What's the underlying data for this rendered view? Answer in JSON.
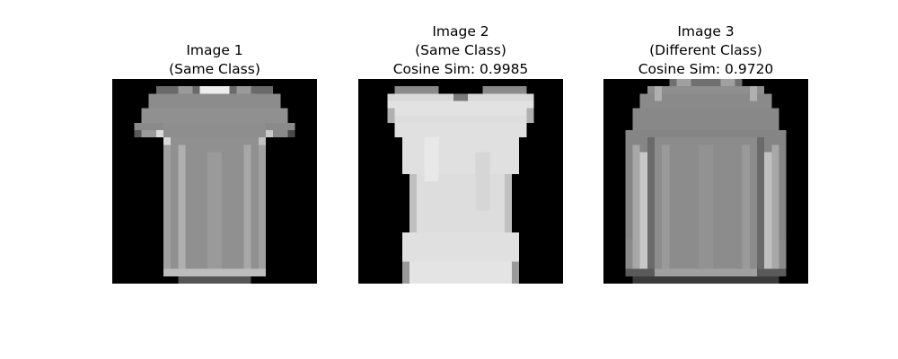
{
  "panels": [
    {
      "title_lines": [
        "Image 1",
        "(Same Class)"
      ],
      "image": "t-shirt"
    },
    {
      "title_lines": [
        "Image 2",
        "(Same Class)",
        "Cosine Sim: 0.9985"
      ],
      "image": "sleeveless-top"
    },
    {
      "title_lines": [
        "Image 3",
        "(Different Class)",
        "Cosine Sim: 0.9720"
      ],
      "image": "long-sleeve-top"
    }
  ],
  "colors": {
    "background": "#ffffff",
    "image_background": "#000000"
  }
}
